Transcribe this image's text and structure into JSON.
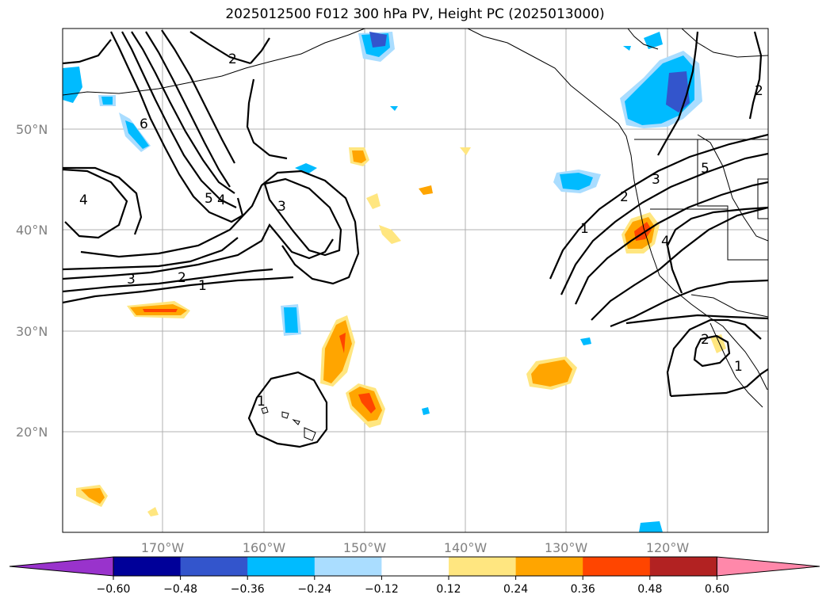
{
  "title": "2025012500 F012 300 hPa PV, Height PC (2025013000)",
  "lat_labels": [
    "50°N",
    "40°N",
    "30°N",
    "20°N"
  ],
  "lon_labels": [
    "170°W",
    "160°W",
    "150°W",
    "140°W",
    "130°W",
    "120°W"
  ],
  "colorbar": {
    "ticks": [
      "−0.60",
      "−0.48",
      "−0.36",
      "−0.24",
      "−0.12",
      "0.12",
      "0.24",
      "0.36",
      "0.48",
      "0.60"
    ],
    "colors": [
      "#9933cc",
      "#000099",
      "#3355cc",
      "#00bbff",
      "#aaddff",
      "#ffffff",
      "#ffe680",
      "#ffa500",
      "#ff4500",
      "#b22222",
      "#ff88aa"
    ]
  },
  "contour_labels": [
    "2",
    "6",
    "5",
    "4",
    "3",
    "3",
    "2",
    "1",
    "4",
    "1",
    "1",
    "2",
    "3",
    "5",
    "4",
    "2",
    "1",
    "2"
  ]
}
